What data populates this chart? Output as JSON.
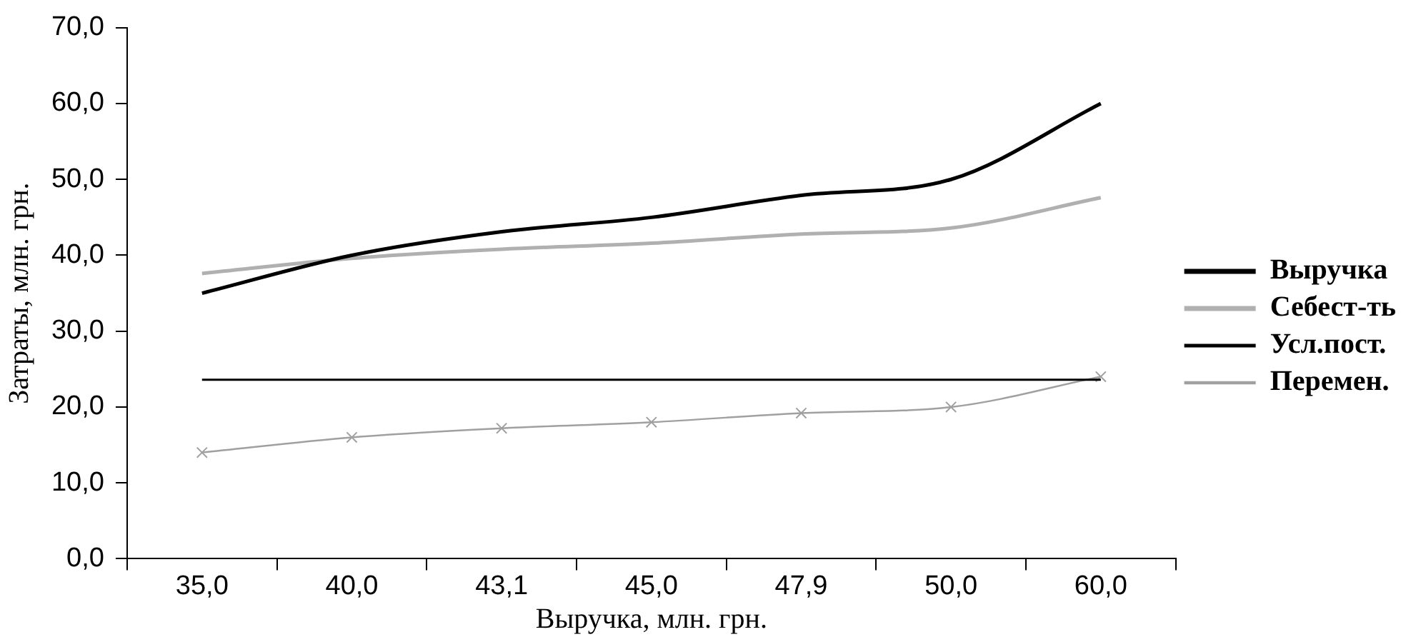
{
  "chart_data": {
    "type": "line",
    "xlabel": "Выручка, млн. грн.",
    "ylabel": "Затраты, млн. грн.",
    "categories": [
      "35,0",
      "40,0",
      "43,1",
      "45,0",
      "47,9",
      "50,0",
      "60,0"
    ],
    "series": [
      {
        "name": "Выручка",
        "color": "#000000",
        "values": [
          35,
          40,
          43.1,
          45,
          47.9,
          50,
          60
        ],
        "marker": "none"
      },
      {
        "name": "Себест-ть",
        "color": "#b0b0b0",
        "values": [
          37.6,
          39.6,
          40.8,
          41.6,
          42.8,
          43.6,
          47.6
        ],
        "marker": "none"
      },
      {
        "name": "Усл.пост.",
        "color": "#000000",
        "values": [
          23.6,
          23.6,
          23.6,
          23.6,
          23.6,
          23.6,
          23.6
        ],
        "marker": "none"
      },
      {
        "name": "Перемен.",
        "color": "#a0a0a0",
        "values": [
          14,
          16,
          17.2,
          18,
          19.2,
          20,
          24
        ],
        "marker": "cross"
      }
    ],
    "ylim": [
      0,
      70
    ],
    "yticks": [
      {
        "value": 0,
        "label": "0,0"
      },
      {
        "value": 10,
        "label": "10,0"
      },
      {
        "value": 20,
        "label": "20,0"
      },
      {
        "value": 30,
        "label": "30,0"
      },
      {
        "value": 40,
        "label": "40,0"
      },
      {
        "value": 50,
        "label": "50,0"
      },
      {
        "value": 60,
        "label": "60,0"
      },
      {
        "value": 70,
        "label": "70,0"
      }
    ],
    "grid": false,
    "legend": "right",
    "line_style": "solid"
  }
}
